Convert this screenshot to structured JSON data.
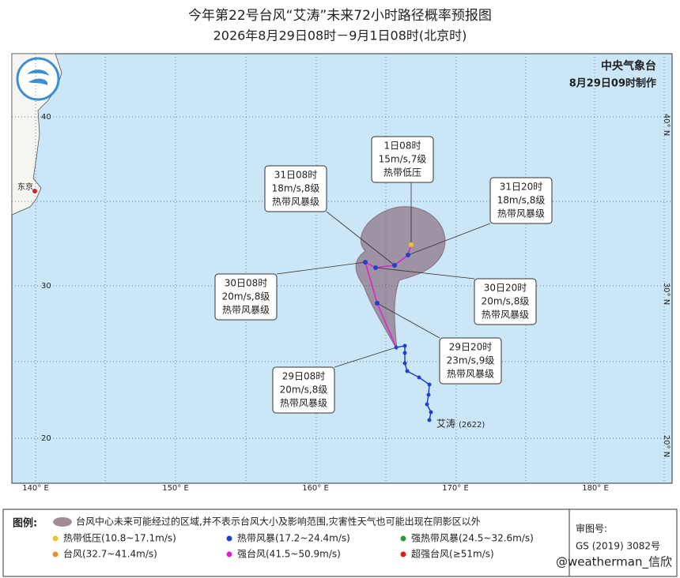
{
  "title": "今年第22号台风“艾涛”未来72小时路径概率预报图",
  "subtitle": "2026年8月29日08时－9月1日08时(北京时)",
  "agency": "中央气象台",
  "issued": "8月29日09时制作",
  "map": {
    "lon_labels": [
      "140° E",
      "150° E",
      "160° E",
      "170° E",
      "180° E"
    ],
    "lat_labels_left": [
      "40",
      "30",
      "20"
    ],
    "lat_labels_right": [
      "40° N",
      "30° N",
      "20° N"
    ],
    "city": "东京",
    "typhoon_name": "艾涛",
    "typhoon_id": "(2622)"
  },
  "callouts": [
    {
      "time": "1日08时",
      "wind": "15m/s,7级",
      "category": "热带低压"
    },
    {
      "time": "31日20时",
      "wind": "18m/s,8级",
      "category": "热带风暴级"
    },
    {
      "time": "31日08时",
      "wind": "18m/s,8级",
      "category": "热带风暴级"
    },
    {
      "time": "30日08时",
      "wind": "20m/s,8级",
      "category": "热带风暴级"
    },
    {
      "time": "30日20时",
      "wind": "20m/s,8级",
      "category": "热带风暴级"
    },
    {
      "time": "29日20时",
      "wind": "23m/s,9级",
      "category": "热带风暴级"
    },
    {
      "time": "29日08时",
      "wind": "20m/s,8级",
      "category": "热带风暴级"
    }
  ],
  "legend": {
    "title": "图例:",
    "cone": "台风中心未来可能经过的区域,并不表示台风大小及影响范围,灾害性天气也可能出现在阴影区以外",
    "items": [
      {
        "label": "热带低压(10.8~17.1m/s)",
        "color": "#f2c12e"
      },
      {
        "label": "热带风暴(17.2~24.4m/s)",
        "color": "#2040d0"
      },
      {
        "label": "强热带风暴(24.5~32.6m/s)",
        "color": "#2a9a3a"
      },
      {
        "label": "台风(32.7~41.4m/s)",
        "color": "#f08a30"
      },
      {
        "label": "强台风(41.5~50.9m/s)",
        "color": "#e020d0"
      },
      {
        "label": "超强台风(≥51m/s)",
        "color": "#e02020"
      }
    ]
  },
  "approval": {
    "label": "审图号:",
    "number": "GS (2019) 3082号"
  },
  "watermark": "@weatherman_信欣"
}
